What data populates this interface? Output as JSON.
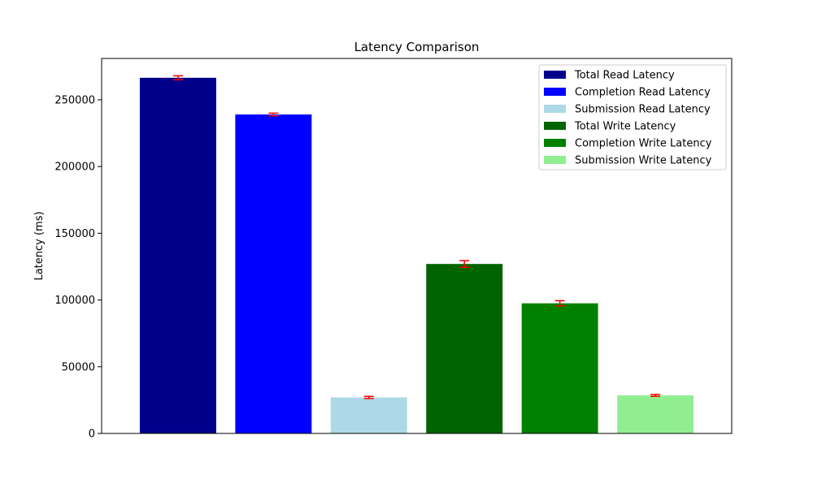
{
  "chart_data": {
    "type": "bar",
    "title": "Latency Comparison",
    "xlabel": "",
    "ylabel": "Latency (ms)",
    "ylim": [
      0,
      281000
    ],
    "yticks": [
      0,
      50000,
      100000,
      150000,
      200000,
      250000
    ],
    "grid": false,
    "legend_position": "top-right",
    "error_bar_color": "#ff0000",
    "series": [
      {
        "name": "Total Read Latency",
        "value": 266500,
        "error": 1500,
        "color": "#00008b"
      },
      {
        "name": "Completion Read Latency",
        "value": 239000,
        "error": 1000,
        "color": "#0000ff"
      },
      {
        "name": "Submission Read Latency",
        "value": 27000,
        "error": 800,
        "color": "#add8e6"
      },
      {
        "name": "Total Write Latency",
        "value": 127000,
        "error": 2500,
        "color": "#006400"
      },
      {
        "name": "Completion Write Latency",
        "value": 97500,
        "error": 2000,
        "color": "#008000"
      },
      {
        "name": "Submission Write Latency",
        "value": 28500,
        "error": 700,
        "color": "#90ee90"
      }
    ]
  }
}
